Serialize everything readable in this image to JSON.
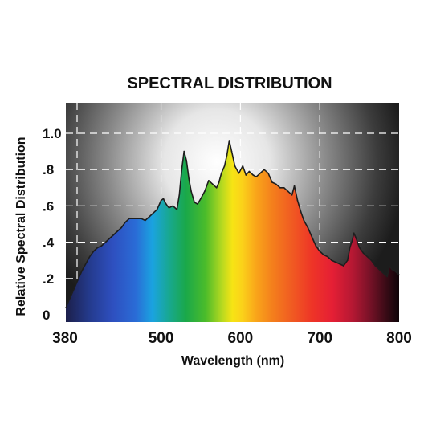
{
  "chart_data": {
    "type": "area",
    "title": "SPECTRAL DISTRIBUTION",
    "xlabel": "Wavelength (nm)",
    "ylabel": "Relative Spectral Distribution",
    "xlim": [
      380,
      800
    ],
    "ylim": [
      0,
      1.1
    ],
    "x_ticks": [
      "380",
      "500",
      "600",
      "700",
      "800"
    ],
    "x_tick_values": [
      380,
      500,
      600,
      700,
      800
    ],
    "y_ticks": [
      "0",
      ".2",
      ".4",
      ".6",
      ".8",
      "1.0"
    ],
    "y_tick_values": [
      0,
      0.2,
      0.4,
      0.6,
      0.8,
      1.0
    ],
    "grid": true,
    "gridline_style": "dashed",
    "x": [
      380,
      385,
      390,
      395,
      400,
      405,
      410,
      415,
      420,
      425,
      430,
      435,
      440,
      445,
      450,
      455,
      460,
      465,
      470,
      475,
      480,
      485,
      490,
      495,
      500,
      503,
      505,
      508,
      510,
      515,
      520,
      523,
      526,
      529,
      532,
      535,
      538,
      542,
      546,
      550,
      555,
      560,
      565,
      570,
      573,
      576,
      580,
      583,
      586,
      589,
      593,
      598,
      603,
      607,
      611,
      616,
      620,
      625,
      630,
      635,
      640,
      645,
      650,
      655,
      660,
      665,
      668,
      672,
      676,
      680,
      685,
      690,
      695,
      700,
      705,
      710,
      715,
      720,
      725,
      730,
      735,
      738,
      741,
      743,
      746,
      750,
      755,
      760,
      765,
      770,
      775,
      780,
      785,
      788,
      791,
      795,
      800
    ],
    "values": [
      0.04,
      0.09,
      0.14,
      0.19,
      0.24,
      0.28,
      0.32,
      0.35,
      0.37,
      0.38,
      0.4,
      0.42,
      0.44,
      0.46,
      0.48,
      0.51,
      0.53,
      0.53,
      0.53,
      0.53,
      0.52,
      0.54,
      0.56,
      0.58,
      0.63,
      0.64,
      0.62,
      0.6,
      0.59,
      0.6,
      0.58,
      0.66,
      0.8,
      0.9,
      0.85,
      0.75,
      0.68,
      0.62,
      0.61,
      0.64,
      0.68,
      0.74,
      0.72,
      0.7,
      0.73,
      0.78,
      0.82,
      0.88,
      0.96,
      0.9,
      0.82,
      0.78,
      0.82,
      0.77,
      0.79,
      0.77,
      0.76,
      0.78,
      0.8,
      0.78,
      0.73,
      0.72,
      0.7,
      0.7,
      0.68,
      0.66,
      0.71,
      0.63,
      0.57,
      0.52,
      0.48,
      0.43,
      0.38,
      0.35,
      0.33,
      0.32,
      0.3,
      0.29,
      0.28,
      0.27,
      0.3,
      0.37,
      0.41,
      0.45,
      0.42,
      0.37,
      0.34,
      0.32,
      0.3,
      0.27,
      0.25,
      0.23,
      0.21,
      0.27,
      0.25,
      0.24,
      0.22
    ]
  }
}
